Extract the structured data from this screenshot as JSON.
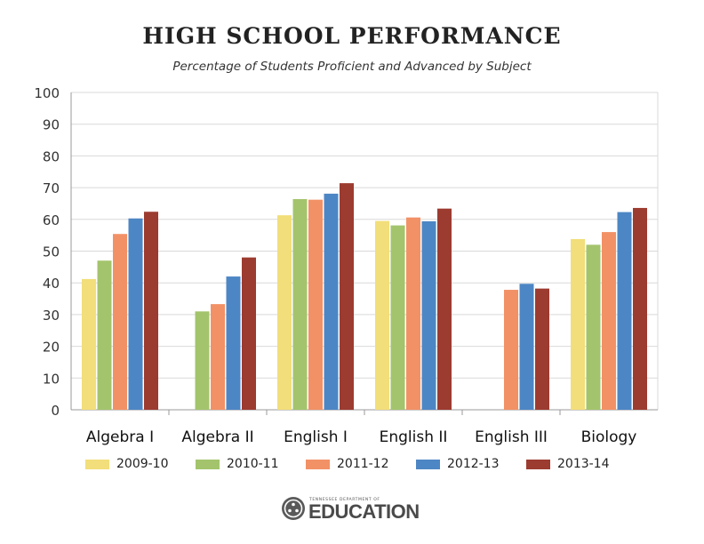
{
  "header": {
    "title": "HIGH SCHOOL PERFORMANCE",
    "subtitle": "Percentage of Students Proficient and Advanced by Subject"
  },
  "logo": {
    "small_text": "TENNESSEE DEPARTMENT OF",
    "big_text": "EDUCATION"
  },
  "chart_data": {
    "type": "bar",
    "title": "HIGH SCHOOL PERFORMANCE",
    "subtitle": "Percentage of Students Proficient and Advanced by Subject",
    "xlabel": "",
    "ylabel": "",
    "ylim": [
      0,
      100
    ],
    "yticks": [
      0,
      10,
      20,
      30,
      40,
      50,
      60,
      70,
      80,
      90,
      100
    ],
    "grid": true,
    "legend": "bottom",
    "categories": [
      "Algebra I",
      "Algebra II",
      "English I",
      "English II",
      "English III",
      "Biology"
    ],
    "series": [
      {
        "name": "2009-10",
        "color": "#f2de7a",
        "values": [
          41.2,
          null,
          61.3,
          59.5,
          null,
          53.8
        ]
      },
      {
        "name": "2010-11",
        "color": "#a3c46c",
        "values": [
          47.0,
          31.0,
          66.4,
          58.1,
          null,
          52.0
        ]
      },
      {
        "name": "2011-12",
        "color": "#f29166",
        "values": [
          55.4,
          33.3,
          66.2,
          60.6,
          37.8,
          56.0
        ]
      },
      {
        "name": "2012-13",
        "color": "#4d86c4",
        "values": [
          60.3,
          42.0,
          68.1,
          59.4,
          39.7,
          62.3
        ]
      },
      {
        "name": "2013-14",
        "color": "#9c3b30",
        "values": [
          62.4,
          48.0,
          71.4,
          63.4,
          38.2,
          63.6
        ]
      }
    ]
  }
}
